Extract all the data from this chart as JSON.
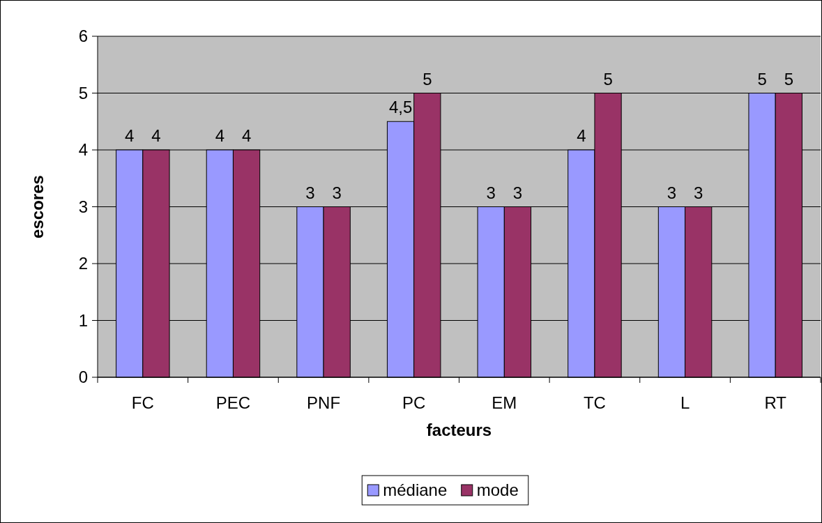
{
  "chart_data": {
    "type": "bar",
    "xlabel": "facteurs",
    "ylabel": "escores",
    "categories": [
      "FC",
      "PEC",
      "PNF",
      "PC",
      "EM",
      "TC",
      "L",
      "RT"
    ],
    "series": [
      {
        "name": "médiane",
        "color": "#9999ff",
        "values": [
          4,
          4,
          3,
          4.5,
          3,
          4,
          3,
          5
        ],
        "value_labels": [
          "4",
          "4",
          "3",
          "4,5",
          "3",
          "4",
          "3",
          "5"
        ]
      },
      {
        "name": "mode",
        "color": "#993366",
        "values": [
          4,
          4,
          3,
          5,
          3,
          5,
          3,
          5
        ],
        "value_labels": [
          "4",
          "4",
          "3",
          "5",
          "3",
          "5",
          "3",
          "5"
        ]
      }
    ],
    "ylim": [
      0,
      6
    ],
    "yticks": [
      0,
      1,
      2,
      3,
      4,
      5,
      6
    ],
    "grid": "y",
    "legend": "bottom"
  }
}
